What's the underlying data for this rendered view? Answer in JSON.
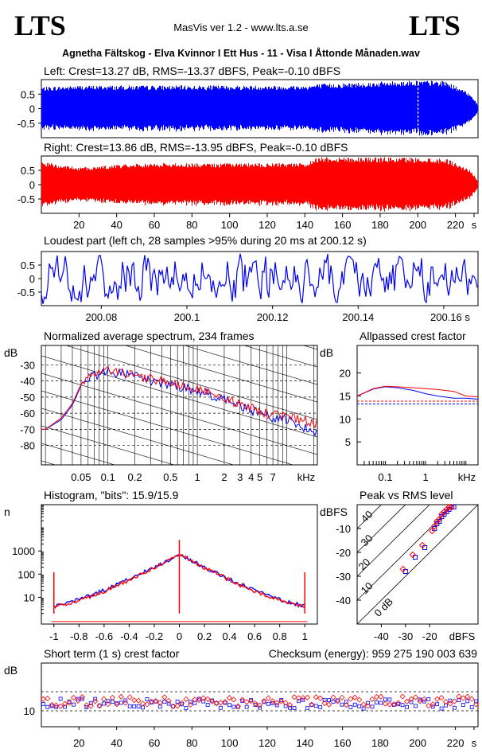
{
  "header": {
    "logo_left": "LTS",
    "logo_right": "LTS",
    "app": "MasVis ver 1.2 - www.lts.a.se",
    "file": "Agnetha Fältskog - Elva Kvinnor I Ett Hus - 11 - Visa I Åttonde Månaden.wav"
  },
  "colors": {
    "left": "#0000ff",
    "right": "#ff0000",
    "axis": "#000000"
  },
  "chart_data": [
    {
      "id": "left_waveform",
      "type": "line",
      "title": "Left: Crest=13.27 dB, RMS=-13.37 dBFS, Peak=-0.10 dBFS",
      "yticks": [
        "0.5",
        "0",
        "-0.5"
      ],
      "ylim": [
        -1,
        1
      ],
      "xlim": [
        0,
        232
      ],
      "envelope": [
        [
          0,
          0.75
        ],
        [
          20,
          0.8
        ],
        [
          50,
          0.8
        ],
        [
          100,
          0.8
        ],
        [
          140,
          0.8
        ],
        [
          147,
          0.85
        ],
        [
          200,
          0.98
        ],
        [
          215,
          0.95
        ],
        [
          228,
          0.5
        ],
        [
          232,
          0.1
        ]
      ],
      "marker_x": 200.12
    },
    {
      "id": "right_waveform",
      "type": "line",
      "title": "Right: Crest=13.86 dB, RMS=-13.95 dBFS, Peak=-0.10 dBFS",
      "yticks": [
        "0.5",
        "0",
        "-0.5"
      ],
      "ylim": [
        -1,
        1
      ],
      "xlim": [
        0,
        232
      ],
      "xticks": [
        "20",
        "40",
        "60",
        "80",
        "100",
        "120",
        "140",
        "160",
        "180",
        "200",
        "220",
        "s"
      ],
      "envelope": [
        [
          0,
          0.8
        ],
        [
          20,
          0.6
        ],
        [
          50,
          0.75
        ],
        [
          100,
          0.75
        ],
        [
          140,
          0.75
        ],
        [
          147,
          0.98
        ],
        [
          200,
          0.95
        ],
        [
          215,
          0.92
        ],
        [
          228,
          0.5
        ],
        [
          232,
          0.1
        ]
      ]
    },
    {
      "id": "loudest_part",
      "type": "line",
      "title": "Loudest part (left  ch, 28 samples >95% during 20 ms at 200.12 s)",
      "yticks": [
        "0.5",
        "0",
        "-0.5"
      ],
      "ylim": [
        -1,
        1
      ],
      "xlim": [
        200.066,
        200.168
      ],
      "xticks": [
        "200.08",
        "200.1",
        "200.12",
        "200.14",
        "200.16 s"
      ]
    },
    {
      "id": "avg_spectrum",
      "type": "line",
      "title": "Normalized average spectrum, 234 frames",
      "ylabel": "dB",
      "yticks": [
        "-30",
        "-40",
        "-50",
        "-60",
        "-70",
        "-80"
      ],
      "ylim": [
        -92,
        -18
      ],
      "xticks": [
        "0.05",
        "0.1",
        "0.2",
        "0.5",
        "1",
        "2",
        "3",
        "4",
        "5",
        "7",
        "kHz"
      ],
      "xunit": "kHz",
      "series": [
        {
          "name": "left",
          "x": [
            0.02,
            0.03,
            0.04,
            0.05,
            0.06,
            0.08,
            0.1,
            0.13,
            0.16,
            0.2,
            0.3,
            0.5,
            0.7,
            1,
            1.5,
            2,
            3,
            4,
            5,
            7,
            10,
            15,
            20
          ],
          "y": [
            -70,
            -64,
            -55,
            -43,
            -38,
            -36,
            -34,
            -35,
            -36,
            -37,
            -40,
            -42,
            -44,
            -46,
            -49,
            -52,
            -55,
            -58,
            -60,
            -63,
            -64,
            -68,
            -73
          ]
        },
        {
          "name": "right",
          "x": [
            0.02,
            0.03,
            0.04,
            0.05,
            0.06,
            0.08,
            0.1,
            0.13,
            0.16,
            0.2,
            0.3,
            0.5,
            0.7,
            1,
            1.5,
            2,
            3,
            4,
            5,
            7,
            10,
            15,
            20
          ],
          "y": [
            -70,
            -63,
            -54,
            -42,
            -37,
            -35,
            -33,
            -34,
            -35,
            -36,
            -39,
            -41,
            -43,
            -45,
            -48,
            -51,
            -54,
            -57,
            -59,
            -61,
            -62,
            -64,
            -67
          ]
        }
      ]
    },
    {
      "id": "allpassed_crest",
      "type": "line",
      "title": "Allpassed crest factor",
      "ylabel": "dB",
      "yticks": [
        "20",
        "15",
        "10",
        "5"
      ],
      "ylim": [
        0,
        26
      ],
      "xticks": [
        "0.1",
        "1",
        "kHz"
      ],
      "series": [
        {
          "name": "left",
          "x": [
            0.02,
            0.05,
            0.1,
            0.2,
            0.5,
            1,
            2,
            5,
            10,
            20
          ],
          "y": [
            15,
            16.5,
            17,
            16.8,
            16.2,
            15.5,
            15,
            14.5,
            14.5,
            14.3
          ]
        },
        {
          "name": "right",
          "x": [
            0.02,
            0.05,
            0.1,
            0.2,
            0.5,
            1,
            2,
            5,
            10,
            20
          ],
          "y": [
            15,
            16.6,
            17.1,
            17,
            16.8,
            16.6,
            16.4,
            16,
            15,
            14.8
          ]
        }
      ],
      "ref_left": 13.27,
      "ref_right": 13.86
    },
    {
      "id": "histogram",
      "type": "line",
      "title": "Histogram, \"bits\": 15.9/15.9",
      "ylabel": "n",
      "yticks": [
        "1000",
        "100",
        "10"
      ],
      "ylog": true,
      "ylim": [
        0.7,
        100000
      ],
      "xlim": [
        -1.1,
        1.1
      ],
      "xticks": [
        "-1",
        "-0.8",
        "-0.6",
        "-0.4",
        "-0.2",
        "0",
        "0.2",
        "0.4",
        "0.6",
        "0.8",
        "1"
      ],
      "series": [
        {
          "name": "left",
          "x": [
            -1,
            -0.8,
            -0.6,
            -0.4,
            -0.2,
            0,
            0.2,
            0.4,
            0.6,
            0.8,
            1
          ],
          "y": [
            4,
            8,
            20,
            60,
            200,
            700,
            200,
            60,
            20,
            8,
            4
          ]
        },
        {
          "name": "right",
          "x": [
            -1,
            -0.8,
            -0.6,
            -0.4,
            -0.2,
            0,
            0.2,
            0.4,
            0.6,
            0.8,
            1
          ],
          "y": [
            4,
            7,
            18,
            55,
            190,
            700,
            190,
            55,
            18,
            7,
            4
          ]
        }
      ]
    },
    {
      "id": "peak_vs_rms",
      "type": "scatter",
      "title": "Peak vs RMS level",
      "ylabel": "dBFS",
      "yticks": [
        "-10",
        "-20",
        "-30",
        "-40"
      ],
      "ylim": [
        -50,
        0
      ],
      "xticks": [
        "-40",
        "-30",
        "-20",
        "dBFS"
      ],
      "xlim": [
        -50,
        0
      ],
      "diag_labels": [
        "40",
        "30",
        "20",
        "10",
        "0 dB"
      ],
      "series": [
        {
          "name": "left",
          "x": [
            -30,
            -26,
            -22,
            -18,
            -17,
            -16,
            -15,
            -14,
            -13,
            -12,
            -11,
            -10
          ],
          "y": [
            -28,
            -22,
            -18,
            -10,
            -8,
            -7,
            -5,
            -4,
            -3,
            -2,
            -1,
            -1
          ]
        },
        {
          "name": "right",
          "x": [
            -31,
            -27,
            -23,
            -19,
            -18,
            -17,
            -16,
            -15,
            -14,
            -13,
            -12,
            -11
          ],
          "y": [
            -27,
            -21,
            -17,
            -11,
            -9,
            -7,
            -6,
            -4,
            -3,
            -2,
            -1,
            -1
          ]
        }
      ]
    },
    {
      "id": "short_term_crest",
      "type": "scatter",
      "title": "Short term (1 s) crest factor",
      "checksum": "Checksum (energy):   959 275 190 003 639",
      "ylabel": "dB",
      "yticks": [
        "10"
      ],
      "ylim": [
        5,
        25
      ],
      "xlim": [
        0,
        232
      ],
      "xticks": [
        "20",
        "40",
        "60",
        "80",
        "100",
        "120",
        "140",
        "160",
        "180",
        "200",
        "220",
        "s"
      ],
      "ref_lines": [
        10,
        16
      ],
      "series": [
        {
          "name": "left",
          "mean": 12.2
        },
        {
          "name": "right",
          "mean": 13
        }
      ]
    }
  ]
}
